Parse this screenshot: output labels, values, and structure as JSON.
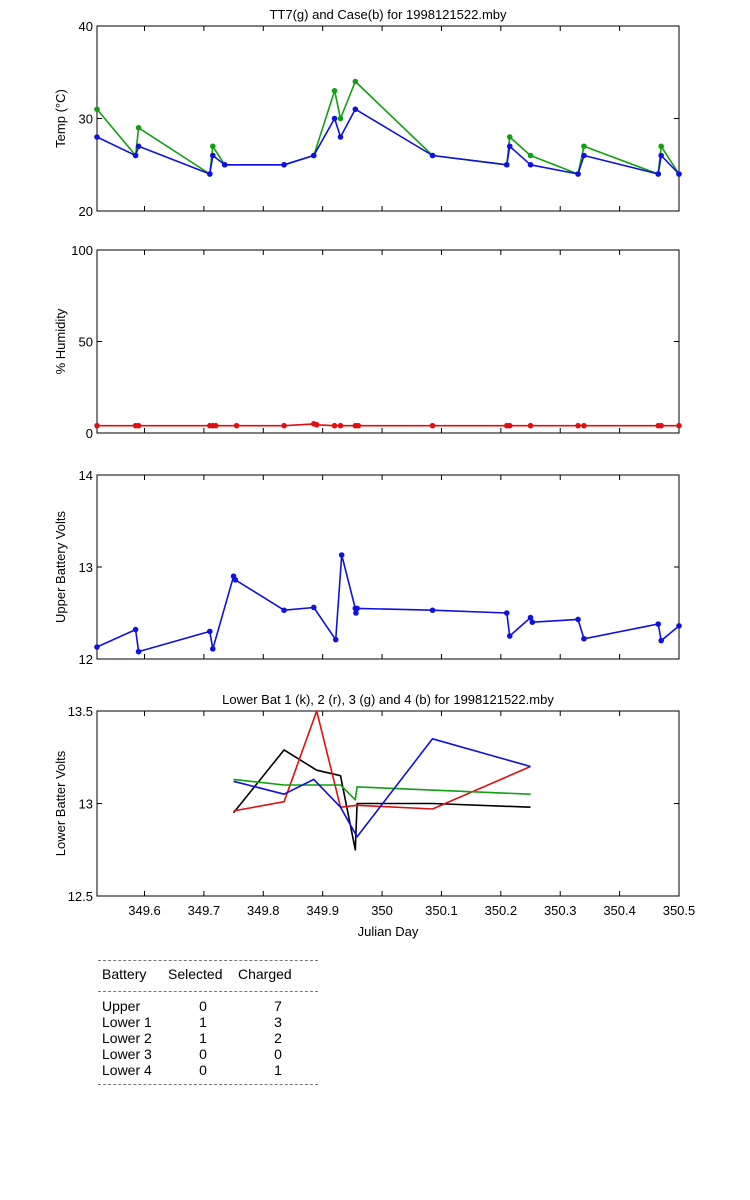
{
  "colors": {
    "green": "#10a010",
    "blue": "#1010e0",
    "red": "#e01010",
    "black": "#000000"
  },
  "chart_data": [
    {
      "type": "line",
      "title": "TT7(g) and Case(b) for 1998121522.mby",
      "xlabel": "",
      "ylabel": "Temp  (°C)",
      "xlim": [
        349.52,
        350.5
      ],
      "ylim": [
        20,
        40
      ],
      "yticks": [
        "20",
        "30",
        "40"
      ],
      "series": [
        {
          "color": "green",
          "markers": true,
          "x": [
            349.52,
            349.585,
            349.59,
            349.71,
            349.715,
            349.735,
            349.835,
            349.885,
            349.92,
            349.93,
            349.955,
            350.085,
            350.21,
            350.215,
            350.25,
            350.33,
            350.34,
            350.465,
            350.47,
            350.5
          ],
          "y": [
            31,
            26,
            29,
            24,
            27,
            25,
            25,
            26,
            33,
            30,
            34,
            26,
            25,
            28,
            26,
            24,
            27,
            24,
            27,
            24
          ]
        },
        {
          "color": "blue",
          "markers": true,
          "x": [
            349.52,
            349.585,
            349.59,
            349.71,
            349.715,
            349.735,
            349.835,
            349.885,
            349.92,
            349.93,
            349.955,
            350.085,
            350.21,
            350.215,
            350.25,
            350.33,
            350.34,
            350.465,
            350.47,
            350.5
          ],
          "y": [
            28,
            26,
            27,
            24,
            26,
            25,
            25,
            26,
            30,
            28,
            31,
            26,
            25,
            27,
            25,
            24,
            26,
            24,
            26,
            24
          ]
        }
      ]
    },
    {
      "type": "line",
      "title": "",
      "xlabel": "",
      "ylabel": "% Humidity",
      "xlim": [
        349.52,
        350.5
      ],
      "ylim": [
        0,
        100
      ],
      "yticks": [
        "0",
        "50",
        "100"
      ],
      "series": [
        {
          "color": "red",
          "markers": true,
          "x": [
            349.52,
            349.585,
            349.59,
            349.71,
            349.715,
            349.72,
            349.755,
            349.835,
            349.885,
            349.89,
            349.92,
            349.93,
            349.955,
            349.96,
            350.085,
            350.21,
            350.215,
            350.25,
            350.33,
            350.34,
            350.465,
            350.47,
            350.5
          ],
          "y": [
            4,
            4,
            4,
            4,
            4,
            4,
            4,
            4,
            5,
            4.5,
            4,
            4,
            4,
            4,
            4,
            4,
            4,
            4,
            4,
            4,
            4,
            4,
            4
          ]
        }
      ]
    },
    {
      "type": "line",
      "title": "",
      "xlabel": "",
      "ylabel": "Upper Battery Volts",
      "xlim": [
        349.52,
        350.5
      ],
      "ylim": [
        12,
        14
      ],
      "yticks": [
        "12",
        "13",
        "14"
      ],
      "series": [
        {
          "color": "blue",
          "markers": true,
          "x": [
            349.52,
            349.585,
            349.59,
            349.71,
            349.715,
            349.75,
            349.753,
            349.835,
            349.885,
            349.922,
            349.932,
            349.955,
            349.956,
            349.958,
            350.085,
            350.21,
            350.215,
            350.25,
            350.253,
            350.33,
            350.34,
            350.465,
            350.47,
            350.5
          ],
          "y": [
            12.13,
            12.32,
            12.08,
            12.3,
            12.11,
            12.9,
            12.86,
            12.53,
            12.56,
            12.21,
            13.13,
            12.55,
            12.5,
            12.55,
            12.53,
            12.5,
            12.25,
            12.45,
            12.4,
            12.43,
            12.22,
            12.38,
            12.2,
            12.36
          ]
        }
      ]
    },
    {
      "type": "line",
      "title": "Lower Bat 1 (k), 2 (r), 3 (g) and 4 (b) for 1998121522.mby",
      "xlabel": "Julian Day",
      "ylabel": "Lower Batter Volts",
      "xlim": [
        349.52,
        350.5
      ],
      "ylim": [
        12.5,
        13.5
      ],
      "yticks": [
        "12.5",
        "13",
        "13.5"
      ],
      "xticks": [
        "349.6",
        "349.7",
        "349.8",
        "349.9",
        "350",
        "350.1",
        "350.2",
        "350.3",
        "350.4",
        "350.5"
      ],
      "series": [
        {
          "color": "black",
          "markers": false,
          "x": [
            349.75,
            349.835,
            349.89,
            349.93,
            349.955,
            349.958,
            350.085,
            350.25
          ],
          "y": [
            12.95,
            13.29,
            13.18,
            13.15,
            12.75,
            13.0,
            13.0,
            12.98
          ]
        },
        {
          "color": "red",
          "markers": false,
          "x": [
            349.75,
            349.835,
            349.89,
            349.93,
            349.958,
            350.085,
            350.25
          ],
          "y": [
            12.96,
            13.01,
            13.5,
            12.98,
            12.99,
            12.97,
            13.2
          ]
        },
        {
          "color": "green",
          "markers": false,
          "x": [
            349.75,
            349.835,
            349.93,
            349.955,
            349.958,
            350.25
          ],
          "y": [
            13.13,
            13.1,
            13.1,
            13.02,
            13.09,
            13.05
          ]
        },
        {
          "color": "blue",
          "markers": false,
          "x": [
            349.75,
            349.835,
            349.885,
            349.93,
            349.958,
            350.085,
            350.25
          ],
          "y": [
            13.12,
            13.05,
            13.13,
            12.98,
            12.82,
            13.35,
            13.2
          ]
        }
      ]
    }
  ],
  "table": {
    "headers": [
      "Battery",
      "Selected",
      "Charged"
    ],
    "rows": [
      [
        "Upper",
        "0",
        "7"
      ],
      [
        "Lower 1",
        "1",
        "3"
      ],
      [
        "Lower 2",
        "1",
        "2"
      ],
      [
        "Lower 3",
        "0",
        "0"
      ],
      [
        "Lower 4",
        "0",
        "1"
      ]
    ]
  }
}
